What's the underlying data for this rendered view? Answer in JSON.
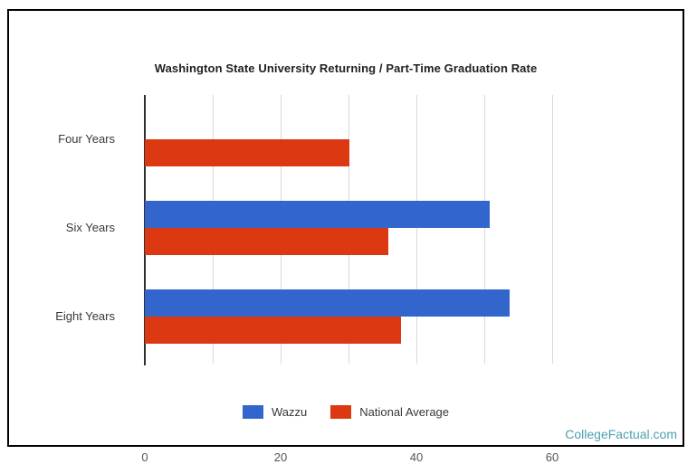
{
  "page": {
    "watermark": "CollegeFactual.com",
    "colors": {
      "watermark": "#4d9fb4",
      "frame_border": "#000000",
      "gridline": "#d9d9d9",
      "axis_line": "#2f2f2f"
    }
  },
  "chart_data": {
    "type": "bar",
    "orientation": "horizontal",
    "title": "Washington State University Returning / Part-Time Graduation Rate",
    "categories": [
      "Four Years",
      "Six Years",
      "Eight Years"
    ],
    "series": [
      {
        "name": "Wazzu",
        "color": "#3366cc",
        "values": [
          null,
          50.8,
          53.7
        ]
      },
      {
        "name": "National Average",
        "color": "#dc3912",
        "values": [
          30.2,
          35.9,
          37.7
        ]
      }
    ],
    "xlim": [
      0,
      76.7
    ],
    "x_ticks": [
      0,
      20,
      40,
      60
    ],
    "x_gridlines": [
      10,
      20,
      30,
      40,
      50,
      60
    ],
    "grid": true,
    "legend_position": "bottom",
    "xlabel": "",
    "ylabel": ""
  }
}
